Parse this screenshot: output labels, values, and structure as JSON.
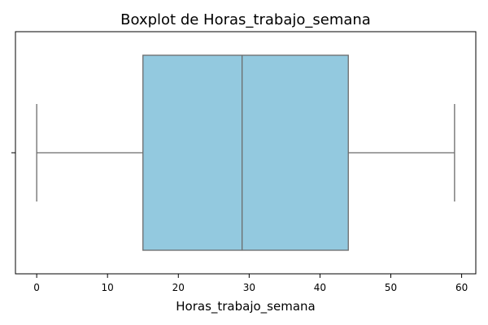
{
  "chart_data": {
    "type": "box",
    "title": "Boxplot de Horas_trabajo_semana",
    "xlabel": "Horas_trabajo_semana",
    "ylabel": "",
    "orientation": "horizontal",
    "xlim": [
      -3,
      62
    ],
    "xticks": [
      0,
      10,
      20,
      30,
      40,
      50,
      60
    ],
    "box": {
      "whisker_low": 0,
      "q1": 15,
      "median": 29,
      "q3": 44,
      "whisker_high": 59
    },
    "grid": false,
    "colors": {
      "box_fill": "#93c9df",
      "line": "#6b6b6b",
      "axis": "#000000"
    }
  }
}
